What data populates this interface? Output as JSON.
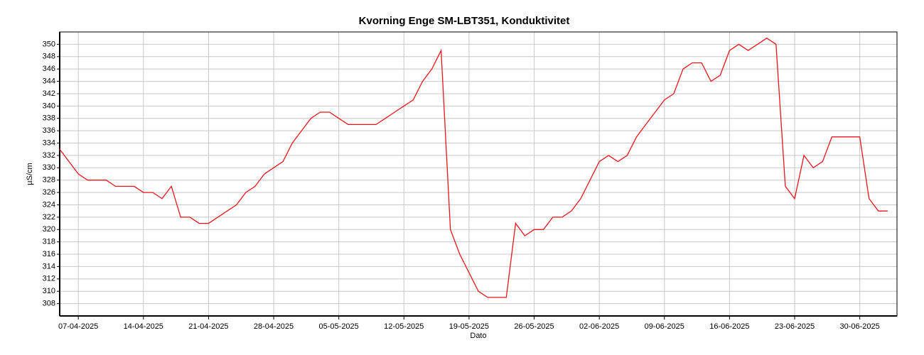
{
  "chart_data": {
    "type": "line",
    "title": "Kvorning Enge SM-LBT351, Konduktivitet",
    "x_label": "Dato",
    "y_label": "µS/cm",
    "x": [
      "05-04-2025",
      "06-04-2025",
      "07-04-2025",
      "08-04-2025",
      "09-04-2025",
      "10-04-2025",
      "11-04-2025",
      "12-04-2025",
      "13-04-2025",
      "14-04-2025",
      "15-04-2025",
      "16-04-2025",
      "17-04-2025",
      "18-04-2025",
      "19-04-2025",
      "20-04-2025",
      "21-04-2025",
      "22-04-2025",
      "23-04-2025",
      "24-04-2025",
      "25-04-2025",
      "26-04-2025",
      "27-04-2025",
      "28-04-2025",
      "29-04-2025",
      "30-04-2025",
      "01-05-2025",
      "02-05-2025",
      "03-05-2025",
      "04-05-2025",
      "05-05-2025",
      "06-05-2025",
      "07-05-2025",
      "08-05-2025",
      "09-05-2025",
      "10-05-2025",
      "11-05-2025",
      "12-05-2025",
      "13-05-2025",
      "14-05-2025",
      "15-05-2025",
      "16-05-2025",
      "17-05-2025",
      "18-05-2025",
      "19-05-2025",
      "20-05-2025",
      "21-05-2025",
      "22-05-2025",
      "23-05-2025",
      "24-05-2025",
      "25-05-2025",
      "26-05-2025",
      "27-05-2025",
      "28-05-2025",
      "29-05-2025",
      "30-05-2025",
      "31-05-2025",
      "01-06-2025",
      "02-06-2025",
      "03-06-2025",
      "04-06-2025",
      "05-06-2025",
      "06-06-2025",
      "07-06-2025",
      "08-06-2025",
      "09-06-2025",
      "10-06-2025",
      "11-06-2025",
      "12-06-2025",
      "13-06-2025",
      "14-06-2025",
      "15-06-2025",
      "16-06-2025",
      "17-06-2025",
      "18-06-2025",
      "19-06-2025",
      "20-06-2025",
      "21-06-2025",
      "22-06-2025",
      "23-06-2025",
      "24-06-2025",
      "25-06-2025",
      "26-06-2025",
      "27-06-2025",
      "28-06-2025",
      "29-06-2025",
      "30-06-2025",
      "01-07-2025",
      "02-07-2025",
      "03-07-2025"
    ],
    "series": [
      {
        "name": "Konduktivitet",
        "color": "#e8141c",
        "values": [
          333,
          331,
          329,
          328,
          328,
          328,
          327,
          327,
          327,
          326,
          326,
          325,
          327,
          322,
          322,
          321,
          321,
          322,
          323,
          324,
          326,
          327,
          329,
          330,
          331,
          334,
          336,
          338,
          339,
          339,
          338,
          337,
          337,
          337,
          337,
          338,
          339,
          340,
          341,
          344,
          346,
          349,
          320,
          316,
          313,
          310,
          309,
          309,
          309,
          321,
          319,
          320,
          320,
          322,
          322,
          323,
          325,
          328,
          331,
          332,
          331,
          332,
          335,
          337,
          339,
          341,
          342,
          346,
          347,
          347,
          344,
          345,
          349,
          350,
          349,
          350,
          351,
          350,
          327,
          325,
          332,
          330,
          331,
          335,
          335,
          335,
          335,
          325,
          323,
          323
        ]
      }
    ],
    "xlim": [
      "05-04-2025",
      "04-07-2025"
    ],
    "xticks": [
      "07-04-2025",
      "14-04-2025",
      "21-04-2025",
      "28-04-2025",
      "05-05-2025",
      "12-05-2025",
      "19-05-2025",
      "26-05-2025",
      "02-06-2025",
      "09-06-2025",
      "16-06-2025",
      "23-06-2025",
      "30-06-2025"
    ],
    "ylim": [
      306,
      352
    ],
    "yticks": [
      308,
      310,
      312,
      314,
      316,
      318,
      320,
      322,
      324,
      326,
      328,
      330,
      332,
      334,
      336,
      338,
      340,
      342,
      344,
      346,
      348,
      350
    ],
    "grid": true
  }
}
